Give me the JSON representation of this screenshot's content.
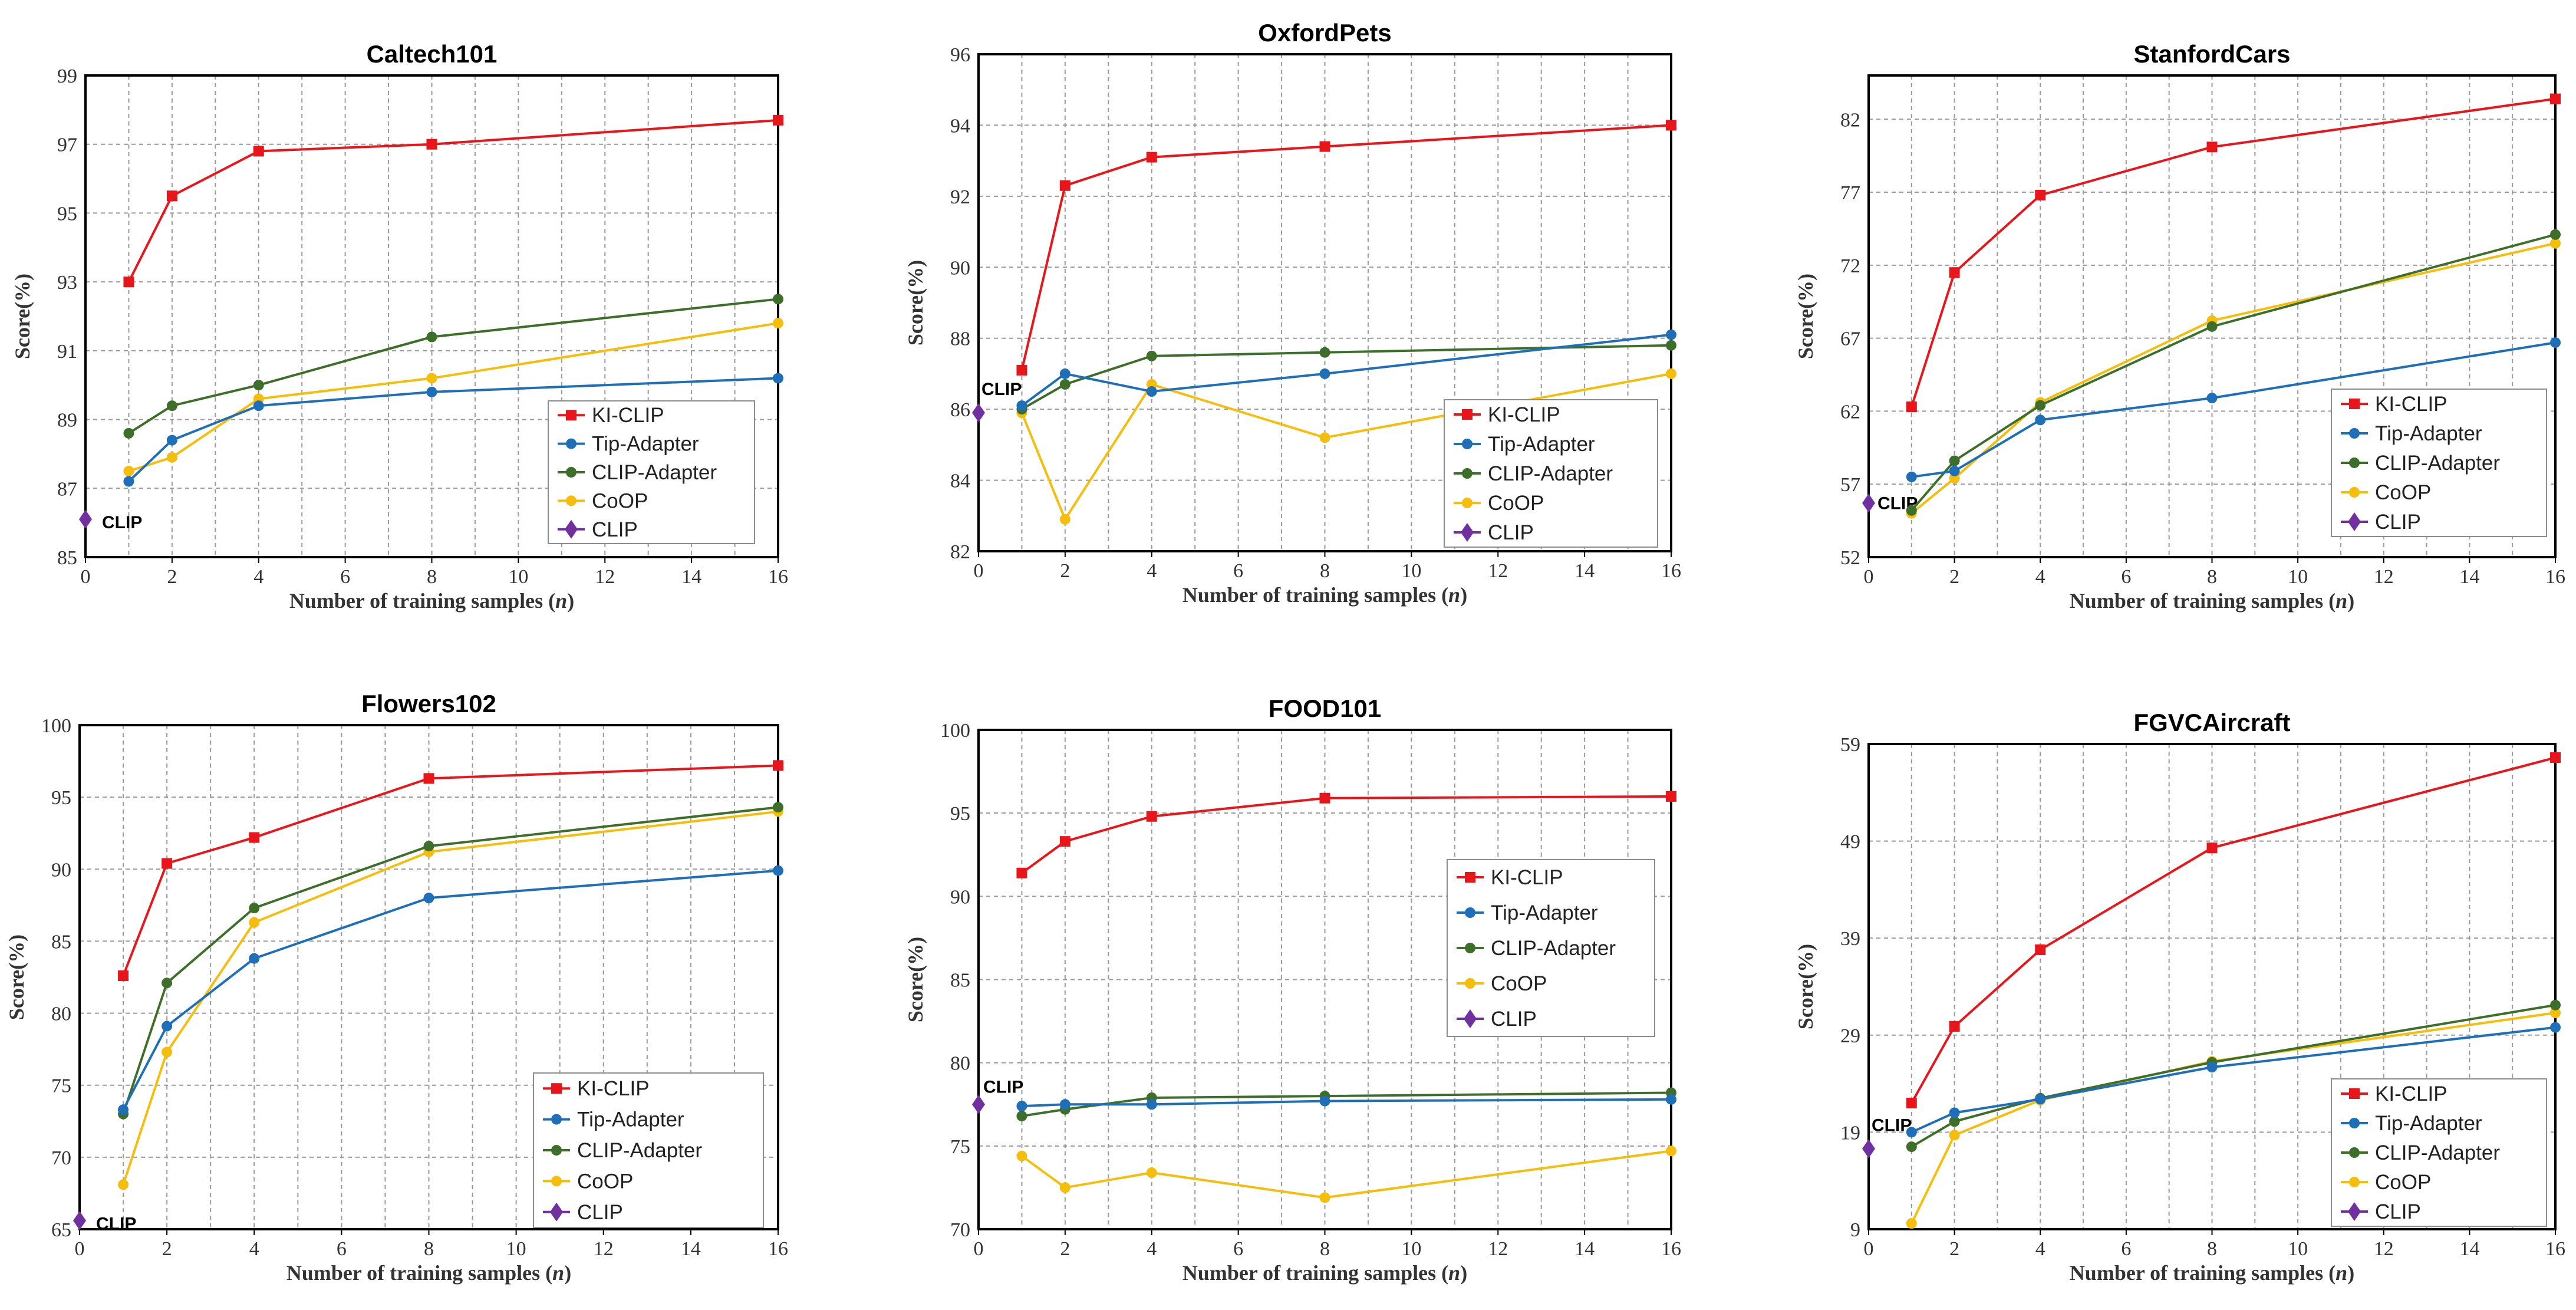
{
  "colors": {
    "KI-CLIP": "#e8161b",
    "Tip-Adapter": "#1f6fb8",
    "CLIP-Adapter": "#3d6f2a",
    "CoOP": "#f5bd0c",
    "CLIP": "#7030a0"
  },
  "common": {
    "xlabel_prefix": "Number of training samples (",
    "xlabel_var": "n",
    "xlabel_suffix": ")",
    "ylabel": "Score(%)",
    "clip_label": "CLIP"
  },
  "chart_data": [
    {
      "type": "line",
      "title": "Caltech101",
      "xlabel": "Number of training samples (n)",
      "ylabel": "Score(%)",
      "xlim": [
        0,
        16
      ],
      "xticks": [
        0,
        2,
        4,
        6,
        8,
        10,
        12,
        14,
        16
      ],
      "ylim": [
        85,
        99
      ],
      "yticks": [
        85,
        87,
        89,
        91,
        93,
        95,
        97,
        99
      ],
      "legend_position": "bottom-right",
      "series": [
        {
          "name": "KI-CLIP",
          "x": [
            1,
            2,
            4,
            8,
            16
          ],
          "values": [
            93.0,
            95.5,
            96.8,
            97.0,
            97.7
          ]
        },
        {
          "name": "Tip-Adapter",
          "x": [
            1,
            2,
            4,
            8,
            16
          ],
          "values": [
            87.2,
            88.4,
            89.4,
            89.8,
            90.2
          ]
        },
        {
          "name": "CLIP-Adapter",
          "x": [
            1,
            2,
            4,
            8,
            16
          ],
          "values": [
            88.6,
            89.4,
            90.0,
            91.4,
            92.5
          ]
        },
        {
          "name": "CoOP",
          "x": [
            1,
            2,
            4,
            8,
            16
          ],
          "values": [
            87.5,
            87.9,
            89.6,
            90.2,
            91.8
          ]
        },
        {
          "name": "CLIP",
          "x": [
            0
          ],
          "values": [
            86.1
          ]
        }
      ]
    },
    {
      "type": "line",
      "title": "OxfordPets",
      "xlabel": "Number of training samples (n)",
      "ylabel": "Score(%)",
      "xlim": [
        0,
        16
      ],
      "xticks": [
        0,
        2,
        4,
        6,
        8,
        10,
        12,
        14,
        16
      ],
      "ylim": [
        82,
        96
      ],
      "yticks": [
        82,
        84,
        86,
        88,
        90,
        92,
        94,
        96
      ],
      "legend_position": "bottom-right",
      "series": [
        {
          "name": "KI-CLIP",
          "x": [
            1,
            2,
            4,
            8,
            16
          ],
          "values": [
            87.1,
            92.3,
            93.1,
            93.4,
            94.0
          ]
        },
        {
          "name": "Tip-Adapter",
          "x": [
            1,
            2,
            4,
            8,
            16
          ],
          "values": [
            86.1,
            87.0,
            86.5,
            87.0,
            88.1
          ]
        },
        {
          "name": "CLIP-Adapter",
          "x": [
            1,
            2,
            4,
            8,
            16
          ],
          "values": [
            86.0,
            86.7,
            87.5,
            87.6,
            87.8
          ]
        },
        {
          "name": "CoOP",
          "x": [
            1,
            2,
            4,
            8,
            16
          ],
          "values": [
            85.9,
            82.9,
            86.7,
            85.2,
            87.0
          ]
        },
        {
          "name": "CLIP",
          "x": [
            0
          ],
          "values": [
            85.9
          ]
        }
      ]
    },
    {
      "type": "line",
      "title": "StanfordCars",
      "xlabel": "Number of training samples (n)",
      "ylabel": "Score(%)",
      "xlim": [
        0,
        16
      ],
      "xticks": [
        0,
        2,
        4,
        6,
        8,
        10,
        12,
        14,
        16
      ],
      "ylim": [
        52,
        85
      ],
      "yticks": [
        52,
        57,
        62,
        67,
        72,
        77,
        82
      ],
      "legend_position": "bottom-right",
      "series": [
        {
          "name": "KI-CLIP",
          "x": [
            1,
            2,
            4,
            8,
            16
          ],
          "values": [
            62.3,
            71.5,
            76.8,
            80.1,
            83.4
          ]
        },
        {
          "name": "Tip-Adapter",
          "x": [
            1,
            2,
            4,
            8,
            16
          ],
          "values": [
            57.5,
            57.9,
            61.4,
            62.9,
            66.7
          ]
        },
        {
          "name": "CLIP-Adapter",
          "x": [
            1,
            2,
            4,
            8,
            16
          ],
          "values": [
            55.2,
            58.6,
            62.4,
            67.8,
            74.1
          ]
        },
        {
          "name": "CoOP",
          "x": [
            1,
            2,
            4,
            8,
            16
          ],
          "values": [
            55.0,
            57.4,
            62.6,
            68.2,
            73.5
          ]
        },
        {
          "name": "CLIP",
          "x": [
            0
          ],
          "values": [
            55.7
          ]
        }
      ]
    },
    {
      "type": "line",
      "title": "Flowers102",
      "xlabel": "Number of training samples (n)",
      "ylabel": "Score(%)",
      "xlim": [
        0,
        16
      ],
      "xticks": [
        0,
        2,
        4,
        6,
        8,
        10,
        12,
        14,
        16
      ],
      "ylim": [
        65,
        100
      ],
      "yticks": [
        65,
        70,
        75,
        80,
        85,
        90,
        95,
        100
      ],
      "legend_position": "bottom-right",
      "series": [
        {
          "name": "KI-CLIP",
          "x": [
            1,
            2,
            4,
            8,
            16
          ],
          "values": [
            82.6,
            90.4,
            92.2,
            96.3,
            97.2
          ]
        },
        {
          "name": "Tip-Adapter",
          "x": [
            1,
            2,
            4,
            8,
            16
          ],
          "values": [
            73.3,
            79.1,
            83.8,
            88.0,
            89.9
          ]
        },
        {
          "name": "CLIP-Adapter",
          "x": [
            1,
            2,
            4,
            8,
            16
          ],
          "values": [
            73.0,
            82.1,
            87.3,
            91.6,
            94.3
          ]
        },
        {
          "name": "CoOP",
          "x": [
            1,
            2,
            4,
            8,
            16
          ],
          "values": [
            68.1,
            77.3,
            86.3,
            91.2,
            94.0
          ]
        },
        {
          "name": "CLIP",
          "x": [
            0
          ],
          "values": [
            65.6
          ]
        }
      ]
    },
    {
      "type": "line",
      "title": "FOOD101",
      "xlabel": "Number of training samples (n)",
      "ylabel": "Score(%)",
      "xlim": [
        0,
        16
      ],
      "xticks": [
        0,
        2,
        4,
        6,
        8,
        10,
        12,
        14,
        16
      ],
      "ylim": [
        70,
        100
      ],
      "yticks": [
        70,
        75,
        80,
        85,
        90,
        95,
        100
      ],
      "legend_position": "center-right",
      "series": [
        {
          "name": "KI-CLIP",
          "x": [
            1,
            2,
            4,
            8,
            16
          ],
          "values": [
            91.4,
            93.3,
            94.8,
            95.9,
            96.0
          ]
        },
        {
          "name": "Tip-Adapter",
          "x": [
            1,
            2,
            4,
            8,
            16
          ],
          "values": [
            77.4,
            77.5,
            77.5,
            77.7,
            77.8
          ]
        },
        {
          "name": "CLIP-Adapter",
          "x": [
            1,
            2,
            4,
            8,
            16
          ],
          "values": [
            76.8,
            77.2,
            77.9,
            78.0,
            78.2
          ]
        },
        {
          "name": "CoOP",
          "x": [
            1,
            2,
            4,
            8,
            16
          ],
          "values": [
            74.4,
            72.5,
            73.4,
            71.9,
            74.7
          ]
        },
        {
          "name": "CLIP",
          "x": [
            0
          ],
          "values": [
            77.5
          ]
        }
      ]
    },
    {
      "type": "line",
      "title": "FGVCAircraft",
      "xlabel": "Number of training samples (n)",
      "ylabel": "Score(%)",
      "xlim": [
        0,
        16
      ],
      "xticks": [
        0,
        2,
        4,
        6,
        8,
        10,
        12,
        14,
        16
      ],
      "ylim": [
        9,
        59
      ],
      "yticks": [
        9,
        19,
        29,
        39,
        49,
        59
      ],
      "legend_position": "bottom-right",
      "series": [
        {
          "name": "KI-CLIP",
          "x": [
            1,
            2,
            4,
            8,
            16
          ],
          "values": [
            22.0,
            29.9,
            37.8,
            48.3,
            57.6
          ]
        },
        {
          "name": "Tip-Adapter",
          "x": [
            1,
            2,
            4,
            8,
            16
          ],
          "values": [
            19.0,
            21.0,
            22.4,
            25.7,
            29.8
          ]
        },
        {
          "name": "CLIP-Adapter",
          "x": [
            1,
            2,
            4,
            8,
            16
          ],
          "values": [
            17.5,
            20.1,
            22.5,
            26.2,
            32.1
          ]
        },
        {
          "name": "CoOP",
          "x": [
            1,
            2,
            4,
            8,
            16
          ],
          "values": [
            9.6,
            18.7,
            22.3,
            26.3,
            31.3
          ]
        },
        {
          "name": "CLIP",
          "x": [
            0
          ],
          "values": [
            17.3
          ]
        }
      ]
    }
  ]
}
